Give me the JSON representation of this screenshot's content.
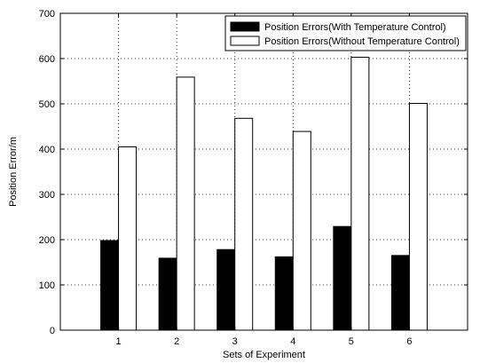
{
  "chart_data": {
    "type": "bar",
    "title": "",
    "xlabel": "Sets of Experiment",
    "ylabel": "Position Error/m",
    "categories": [
      "1",
      "2",
      "3",
      "4",
      "5",
      "6"
    ],
    "series": [
      {
        "name": "Position Errors(With Temperature Control)",
        "values": [
          198,
          159,
          178,
          162,
          229,
          165
        ],
        "color": "#000000"
      },
      {
        "name": "Position Errors(Without Temperature Control)",
        "values": [
          405,
          559,
          468,
          439,
          603,
          501
        ],
        "color": "#ffffff"
      }
    ],
    "ylim": [
      0,
      700
    ],
    "yticks": [
      "0",
      "100",
      "200",
      "300",
      "400",
      "500",
      "600",
      "700"
    ],
    "grid": true,
    "legend_position": "top-right"
  }
}
